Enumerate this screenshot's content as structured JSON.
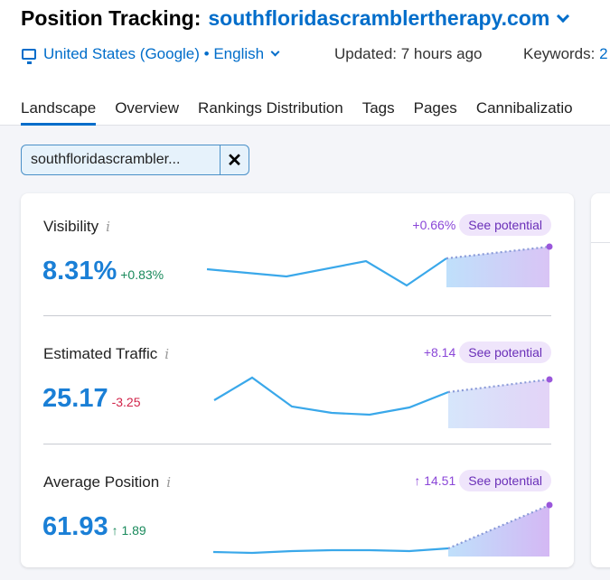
{
  "header": {
    "title": "Position Tracking:",
    "domain": "southfloridascramblertherapy.com"
  },
  "meta": {
    "location": "United States (Google) • English",
    "updated": "Updated: 7 hours ago",
    "keywords_label": "Keywords:",
    "keywords_value": "2"
  },
  "tabs": [
    "Landscape",
    "Overview",
    "Rankings Distribution",
    "Tags",
    "Pages",
    "Cannibalizatio"
  ],
  "filter": {
    "chip_text": "southfloridascrambler...",
    "remove_icon": "close-icon"
  },
  "metrics": {
    "visibility": {
      "label": "Visibility",
      "info": "i",
      "value": "8.31%",
      "delta": "+0.83%",
      "potential_delta": "+0.66%",
      "potential_label": "See potential"
    },
    "traffic": {
      "label": "Estimated Traffic",
      "info": "i",
      "value": "25.17",
      "delta": "-3.25",
      "potential_delta": "+8.14",
      "potential_label": "See potential"
    },
    "position": {
      "label": "Average Position",
      "info": "i",
      "value": "61.93",
      "delta": "↑ 1.89",
      "potential_delta": "↑ 14.51",
      "potential_label": "See potential"
    }
  },
  "colors": {
    "accent": "#006dca",
    "value": "#1a7fd6",
    "positive": "#1a8a5c",
    "negative": "#d1244a",
    "potential": "#8b47d8"
  }
}
